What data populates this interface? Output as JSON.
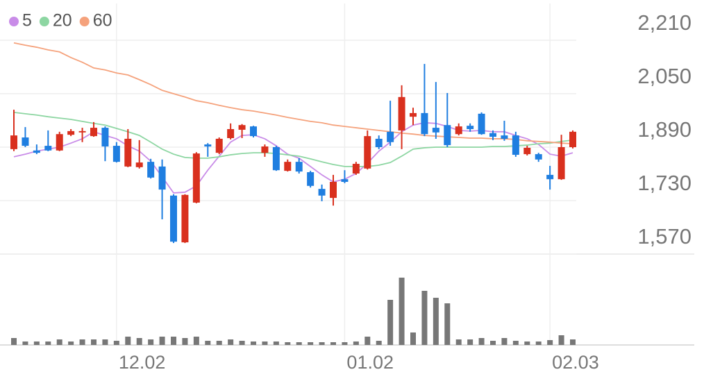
{
  "chart_data": {
    "type": "candlestick",
    "categories": [
      null,
      null,
      null,
      null,
      null,
      null,
      null,
      null,
      null,
      "12.02",
      null,
      null,
      null,
      null,
      null,
      null,
      null,
      null,
      null,
      null,
      null,
      null,
      null,
      null,
      null,
      null,
      null,
      null,
      null,
      "01.02",
      null,
      null,
      null,
      null,
      null,
      null,
      null,
      null,
      null,
      null,
      null,
      null,
      null,
      null,
      null,
      null,
      null,
      "02.03",
      null,
      null
    ],
    "open": [
      1884,
      1919,
      1880,
      1894,
      1880,
      1927,
      1934,
      1923,
      1948,
      1894,
      1832,
      1830,
      1846,
      1832,
      1745,
      1605,
      1724,
      1898,
      1873,
      1917,
      1942,
      1952,
      1873,
      1890,
      1819,
      1846,
      1815,
      1765,
      1738,
      1794,
      1811,
      1826,
      1915,
      1936,
      1940,
      1981,
      1992,
      1948,
      1956,
      1929,
      1954,
      1990,
      1932,
      1925,
      1925,
      1869,
      1869,
      1807,
      1794,
      1890
    ],
    "high": [
      2002,
      1950,
      1898,
      1940,
      1936,
      1944,
      1948,
      1965,
      1952,
      1905,
      1944,
      1911,
      1855,
      1853,
      1749,
      1749,
      1875,
      1902,
      1919,
      1961,
      1959,
      1954,
      1898,
      1894,
      1853,
      1857,
      1819,
      1778,
      1807,
      1821,
      1846,
      1940,
      1925,
      2029,
      2075,
      2008,
      2139,
      2085,
      2052,
      1961,
      1961,
      1994,
      1940,
      1969,
      1936,
      1894,
      1873,
      1834,
      1927,
      1940
    ],
    "low": [
      1878,
      1890,
      1869,
      1878,
      1878,
      1923,
      1905,
      1921,
      1848,
      1844,
      1830,
      1826,
      1796,
      1674,
      1603,
      1603,
      1722,
      1861,
      1869,
      1913,
      1917,
      1919,
      1861,
      1819,
      1817,
      1811,
      1769,
      1728,
      1715,
      1782,
      1807,
      1823,
      1884,
      1894,
      1884,
      1956,
      1923,
      1915,
      1890,
      1925,
      1936,
      1927,
      1911,
      1909,
      1861,
      1865,
      1846,
      1763,
      1792,
      1886
    ],
    "close": [
      1925,
      1894,
      1873,
      1880,
      1929,
      1938,
      1938,
      1948,
      1892,
      1846,
      1915,
      1844,
      1799,
      1763,
      1607,
      1747,
      1871,
      1892,
      1915,
      1944,
      1956,
      1923,
      1892,
      1821,
      1846,
      1817,
      1774,
      1745,
      1786,
      1786,
      1840,
      1923,
      1890,
      1905,
      2040,
      1992,
      1929,
      1934,
      1896,
      1952,
      1944,
      1929,
      1921,
      1915,
      1867,
      1888,
      1853,
      1794,
      1890,
      1936
    ],
    "up_color": "#d9301e",
    "down_color": "#1f7ee0",
    "series": [
      {
        "name": "5",
        "color": "#c98ce8",
        "values": [
          1861,
          1869,
          1878,
          1884,
          1890,
          1902,
          1915,
          1936,
          1925,
          1915,
          1894,
          1878,
          1848,
          1801,
          1753,
          1755,
          1774,
          1821,
          1863,
          1905,
          1925,
          1927,
          1915,
          1894,
          1869,
          1857,
          1832,
          1807,
          1786,
          1794,
          1811,
          1842,
          1878,
          1905,
          1936,
          1956,
          1963,
          1961,
          1952,
          1940,
          1938,
          1940,
          1936,
          1936,
          1925,
          1915,
          1898,
          1869,
          1863,
          1873
        ]
      },
      {
        "name": "20",
        "color": "#8dd6a2",
        "values": [
          1994,
          1990,
          1986,
          1981,
          1977,
          1973,
          1967,
          1961,
          1956,
          1946,
          1936,
          1925,
          1905,
          1884,
          1869,
          1859,
          1857,
          1857,
          1861,
          1867,
          1871,
          1873,
          1873,
          1871,
          1867,
          1863,
          1855,
          1846,
          1838,
          1832,
          1832,
          1832,
          1836,
          1844,
          1863,
          1884,
          1888,
          1890,
          1890,
          1890,
          1890,
          1890,
          1892,
          1892,
          1894,
          1896,
          1900,
          1902,
          1907,
          1911
        ]
      },
      {
        "name": "60",
        "color": "#f5a27c",
        "values": [
          2202,
          2195,
          2189,
          2181,
          2175,
          2158,
          2144,
          2127,
          2121,
          2112,
          2106,
          2092,
          2077,
          2060,
          2050,
          2040,
          2029,
          2023,
          2015,
          2008,
          2002,
          1998,
          1992,
          1986,
          1979,
          1973,
          1967,
          1963,
          1956,
          1952,
          1948,
          1944,
          1940,
          1936,
          1932,
          1929,
          1925,
          1923,
          1921,
          1919,
          1917,
          1917,
          1915,
          1915,
          1913,
          1909,
          1907,
          1905,
          1902,
          1900
        ]
      }
    ],
    "volume": [
      10,
      5,
      5,
      5,
      8,
      5,
      8,
      8,
      8,
      6,
      12,
      10,
      8,
      12,
      12,
      10,
      12,
      6,
      6,
      8,
      6,
      5,
      5,
      5,
      4,
      4,
      4,
      4,
      4,
      4,
      5,
      12,
      6,
      65,
      97,
      18,
      78,
      68,
      60,
      8,
      8,
      10,
      6,
      10,
      6,
      5,
      5,
      7,
      14,
      8
    ],
    "volume_color": "#777777",
    "volume_ylim": [
      0,
      100
    ],
    "ylim": [
      1570,
      2320
    ],
    "yticks": [
      {
        "value": 1570,
        "label": "1,570"
      },
      {
        "value": 1730,
        "label": "1,730"
      },
      {
        "value": 1890,
        "label": "1,890"
      },
      {
        "value": 2050,
        "label": "2,050"
      },
      {
        "value": 2210,
        "label": "2,210"
      }
    ],
    "grid": true
  }
}
